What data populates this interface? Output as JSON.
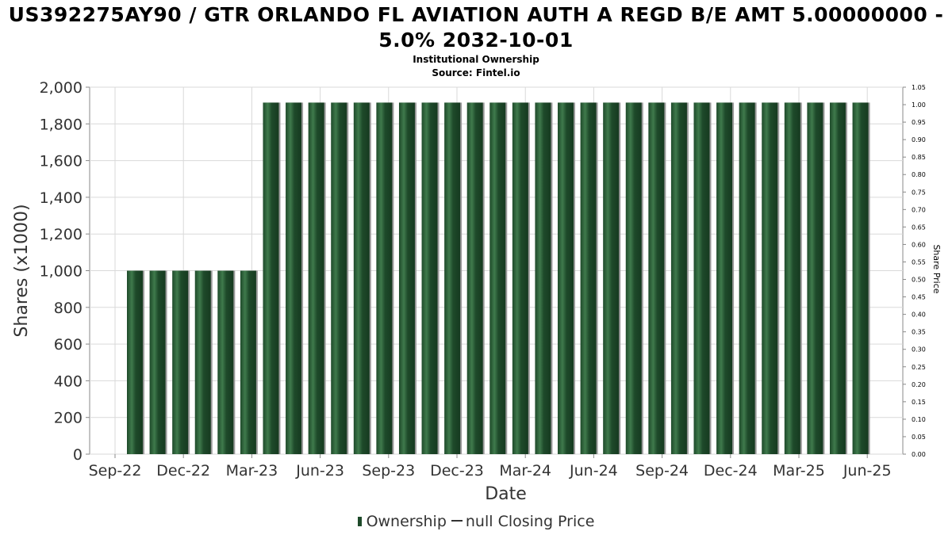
{
  "title_line1": "US392275AY90 / GTR ORLANDO FL AVIATION AUTH A REGD B/E AMT 5.00000000 -",
  "title_line2": "5.0% 2032-10-01",
  "subtitle1": "Institutional Ownership",
  "subtitle2": "Source: Fintel.io",
  "legend": {
    "ownership": "Ownership",
    "price": "null Closing Price"
  },
  "colors": {
    "bar": "#1e4a2a",
    "bar_highlight": "#3f7a4c",
    "bar_shadow": "#9a9a9a",
    "grid": "#d9d9d9",
    "axis": "#888888"
  },
  "chart_data": {
    "type": "bar",
    "title": "US392275AY90 / GTR ORLANDO FL AVIATION AUTH A REGD B/E AMT 5.00000000 - 5.0% 2032-10-01",
    "xlabel": "Date",
    "ylabel": "Shares (x1000)",
    "y2label": "Share Price",
    "ylim": [
      0,
      2000
    ],
    "y2lim": [
      0,
      1.05
    ],
    "yticks": [
      "0",
      "200",
      "400",
      "600",
      "800",
      "1,000",
      "1,200",
      "1,400",
      "1,600",
      "1,800",
      "2,000"
    ],
    "y2ticks": [
      "0.00",
      "0.05",
      "0.10",
      "0.15",
      "0.20",
      "0.25",
      "0.30",
      "0.35",
      "0.40",
      "0.45",
      "0.50",
      "0.55",
      "0.60",
      "0.65",
      "0.70",
      "0.75",
      "0.80",
      "0.85",
      "0.90",
      "0.95",
      "1.00",
      "1.05"
    ],
    "xticks": [
      "Sep-22",
      "Dec-22",
      "Mar-23",
      "Jun-23",
      "Sep-23",
      "Dec-23",
      "Mar-24",
      "Jun-24",
      "Sep-24",
      "Dec-24",
      "Mar-25",
      "Jun-25"
    ],
    "grid": true,
    "legend_position": "bottom",
    "series": [
      {
        "name": "Ownership",
        "values": [
          1000,
          1000,
          1000,
          1000,
          1000,
          1000,
          1916,
          1916,
          1916,
          1916,
          1916,
          1916,
          1916,
          1916,
          1916,
          1916,
          1916,
          1916,
          1916,
          1916,
          1916,
          1916,
          1916,
          1916,
          1916,
          1916,
          1916,
          1916,
          1916,
          1916,
          1916,
          1916,
          1916
        ]
      }
    ]
  }
}
